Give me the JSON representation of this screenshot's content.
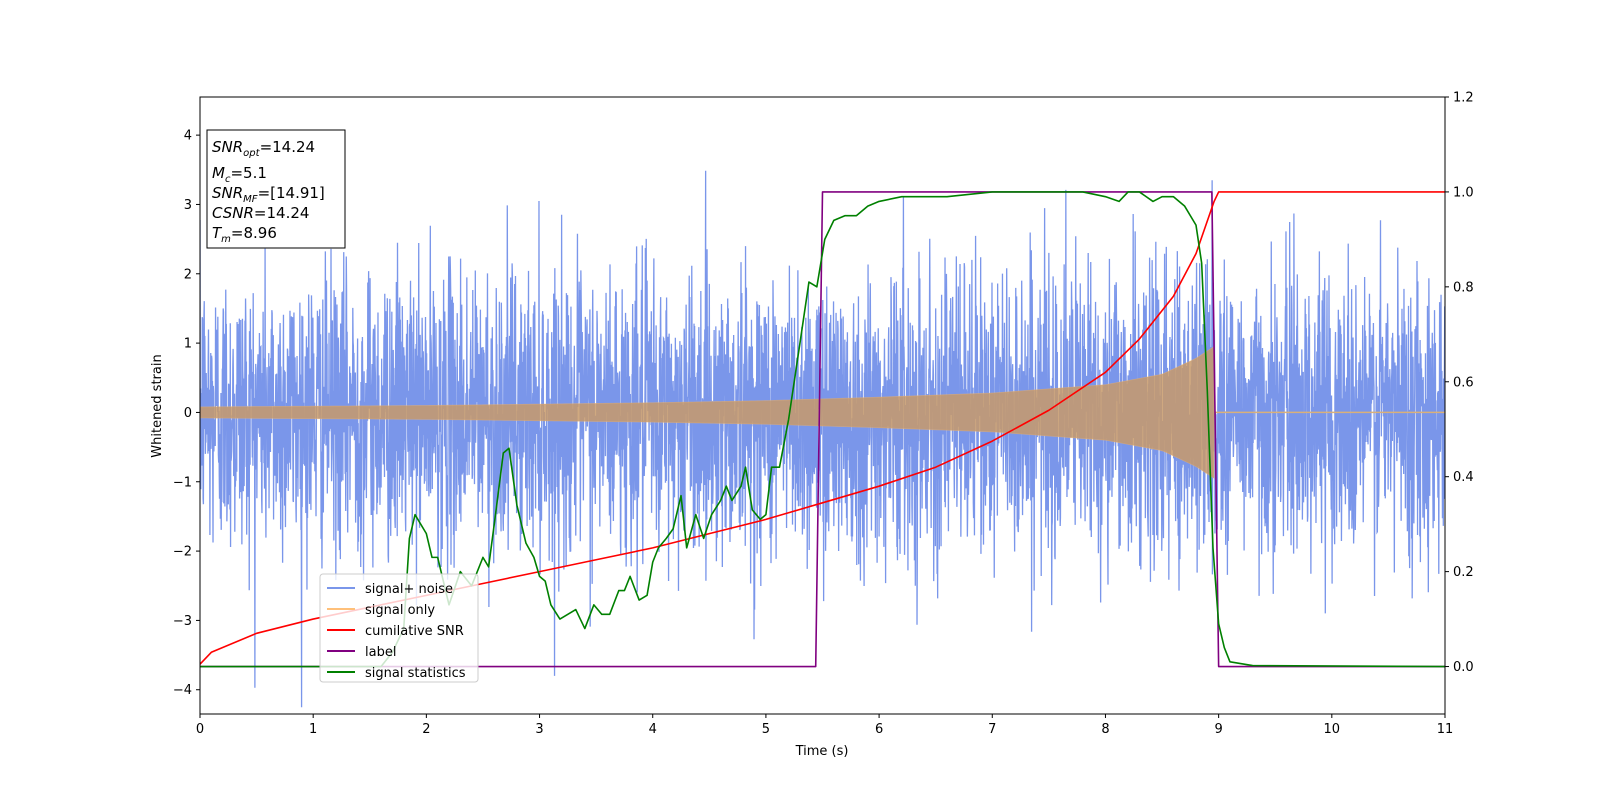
{
  "chart_data": {
    "type": "line",
    "xlabel": "Time (s)",
    "ylabel": "Whitened strain",
    "xlim": [
      0,
      11
    ],
    "ylim": [
      -4.35,
      4.55
    ],
    "y2lim": [
      -0.1,
      1.2
    ],
    "x_ticks": [
      "0",
      "1",
      "2",
      "3",
      "4",
      "5",
      "6",
      "7",
      "8",
      "9",
      "10",
      "11"
    ],
    "y_ticks": [
      "−4",
      "−3",
      "−2",
      "−1",
      "0",
      "1",
      "2",
      "3",
      "4"
    ],
    "y2_ticks": [
      "0.0",
      "0.2",
      "0.4",
      "0.6",
      "0.8",
      "1.0",
      "1.2"
    ],
    "grid": false,
    "legend_position": "bottom-left",
    "annotation": {
      "snr_opt": {
        "label": "SNR",
        "sub": "opt",
        "value": "=14.24"
      },
      "mc": {
        "label": "M",
        "sub": "c",
        "value": "=5.1"
      },
      "snr_mf": {
        "label": "SNR",
        "sub": "MF",
        "value": "=[14.91]"
      },
      "csnr": {
        "label": "CSNR",
        "value": "=14.24"
      },
      "tm": {
        "label": "T",
        "sub": "m",
        "value": "=8.96"
      }
    },
    "series": [
      {
        "name": "signal+ noise",
        "axis": "left",
        "color": "#4169e1",
        "kind": "noise",
        "noise_sigma": 1.0,
        "envelope": "0.08 to 0.95 chirp ending at t=8.96"
      },
      {
        "name": "signal only",
        "axis": "left",
        "color": "#ffa500",
        "kind": "chirp",
        "x_end": 8.96,
        "amplitude_points": [
          [
            0,
            0.08
          ],
          [
            2,
            0.1
          ],
          [
            4,
            0.14
          ],
          [
            5,
            0.17
          ],
          [
            6,
            0.22
          ],
          [
            7,
            0.28
          ],
          [
            8,
            0.4
          ],
          [
            8.5,
            0.55
          ],
          [
            8.8,
            0.78
          ],
          [
            8.96,
            0.95
          ]
        ]
      },
      {
        "name": "cumilative SNR",
        "axis": "right",
        "color": "#ff0000",
        "points": [
          [
            0,
            0.005
          ],
          [
            0.1,
            0.03
          ],
          [
            0.5,
            0.07
          ],
          [
            1,
            0.1
          ],
          [
            1.5,
            0.125
          ],
          [
            2,
            0.15
          ],
          [
            2.5,
            0.175
          ],
          [
            3,
            0.2
          ],
          [
            3.5,
            0.225
          ],
          [
            4,
            0.25
          ],
          [
            4.5,
            0.28
          ],
          [
            5,
            0.31
          ],
          [
            5.5,
            0.345
          ],
          [
            6,
            0.38
          ],
          [
            6.5,
            0.42
          ],
          [
            7,
            0.475
          ],
          [
            7.5,
            0.54
          ],
          [
            8,
            0.62
          ],
          [
            8.3,
            0.69
          ],
          [
            8.6,
            0.78
          ],
          [
            8.8,
            0.87
          ],
          [
            8.96,
            0.98
          ],
          [
            9.0,
            1.0
          ],
          [
            11,
            1.0
          ]
        ]
      },
      {
        "name": "label",
        "axis": "right",
        "color": "#800080",
        "points": [
          [
            0,
            0
          ],
          [
            5.44,
            0
          ],
          [
            5.5,
            1
          ],
          [
            8.94,
            1
          ],
          [
            9.0,
            0
          ],
          [
            11,
            0
          ]
        ]
      },
      {
        "name": "signal statistics",
        "axis": "right",
        "color": "#008000",
        "points": [
          [
            0,
            0
          ],
          [
            1.6,
            0
          ],
          [
            1.7,
            0.03
          ],
          [
            1.8,
            0.08
          ],
          [
            1.85,
            0.27
          ],
          [
            1.9,
            0.32
          ],
          [
            2.0,
            0.28
          ],
          [
            2.05,
            0.23
          ],
          [
            2.1,
            0.23
          ],
          [
            2.2,
            0.13
          ],
          [
            2.3,
            0.2
          ],
          [
            2.4,
            0.17
          ],
          [
            2.5,
            0.23
          ],
          [
            2.55,
            0.21
          ],
          [
            2.6,
            0.3
          ],
          [
            2.68,
            0.45
          ],
          [
            2.73,
            0.46
          ],
          [
            2.8,
            0.34
          ],
          [
            2.88,
            0.26
          ],
          [
            2.95,
            0.23
          ],
          [
            3.0,
            0.19
          ],
          [
            3.05,
            0.18
          ],
          [
            3.1,
            0.13
          ],
          [
            3.18,
            0.1
          ],
          [
            3.25,
            0.11
          ],
          [
            3.32,
            0.12
          ],
          [
            3.4,
            0.08
          ],
          [
            3.48,
            0.13
          ],
          [
            3.55,
            0.11
          ],
          [
            3.62,
            0.11
          ],
          [
            3.7,
            0.16
          ],
          [
            3.75,
            0.16
          ],
          [
            3.8,
            0.19
          ],
          [
            3.88,
            0.14
          ],
          [
            3.95,
            0.15
          ],
          [
            4.0,
            0.22
          ],
          [
            4.05,
            0.25
          ],
          [
            4.12,
            0.27
          ],
          [
            4.18,
            0.29
          ],
          [
            4.25,
            0.36
          ],
          [
            4.3,
            0.25
          ],
          [
            4.38,
            0.32
          ],
          [
            4.45,
            0.27
          ],
          [
            4.52,
            0.32
          ],
          [
            4.6,
            0.35
          ],
          [
            4.65,
            0.38
          ],
          [
            4.7,
            0.35
          ],
          [
            4.78,
            0.38
          ],
          [
            4.82,
            0.42
          ],
          [
            4.88,
            0.33
          ],
          [
            4.95,
            0.31
          ],
          [
            5.0,
            0.32
          ],
          [
            5.05,
            0.42
          ],
          [
            5.12,
            0.42
          ],
          [
            5.2,
            0.52
          ],
          [
            5.3,
            0.68
          ],
          [
            5.38,
            0.81
          ],
          [
            5.45,
            0.8
          ],
          [
            5.52,
            0.9
          ],
          [
            5.6,
            0.94
          ],
          [
            5.7,
            0.95
          ],
          [
            5.8,
            0.95
          ],
          [
            5.9,
            0.97
          ],
          [
            6.0,
            0.98
          ],
          [
            6.2,
            0.99
          ],
          [
            6.6,
            0.99
          ],
          [
            7.0,
            1.0
          ],
          [
            7.5,
            1.0
          ],
          [
            7.8,
            1.0
          ],
          [
            8.0,
            0.99
          ],
          [
            8.12,
            0.98
          ],
          [
            8.2,
            1.0
          ],
          [
            8.3,
            1.0
          ],
          [
            8.42,
            0.98
          ],
          [
            8.5,
            0.99
          ],
          [
            8.6,
            0.99
          ],
          [
            8.7,
            0.97
          ],
          [
            8.8,
            0.93
          ],
          [
            8.85,
            0.85
          ],
          [
            8.9,
            0.58
          ],
          [
            8.95,
            0.25
          ],
          [
            9.0,
            0.09
          ],
          [
            9.05,
            0.04
          ],
          [
            9.1,
            0.01
          ],
          [
            9.3,
            0.002
          ],
          [
            11,
            0.0
          ]
        ]
      }
    ]
  }
}
